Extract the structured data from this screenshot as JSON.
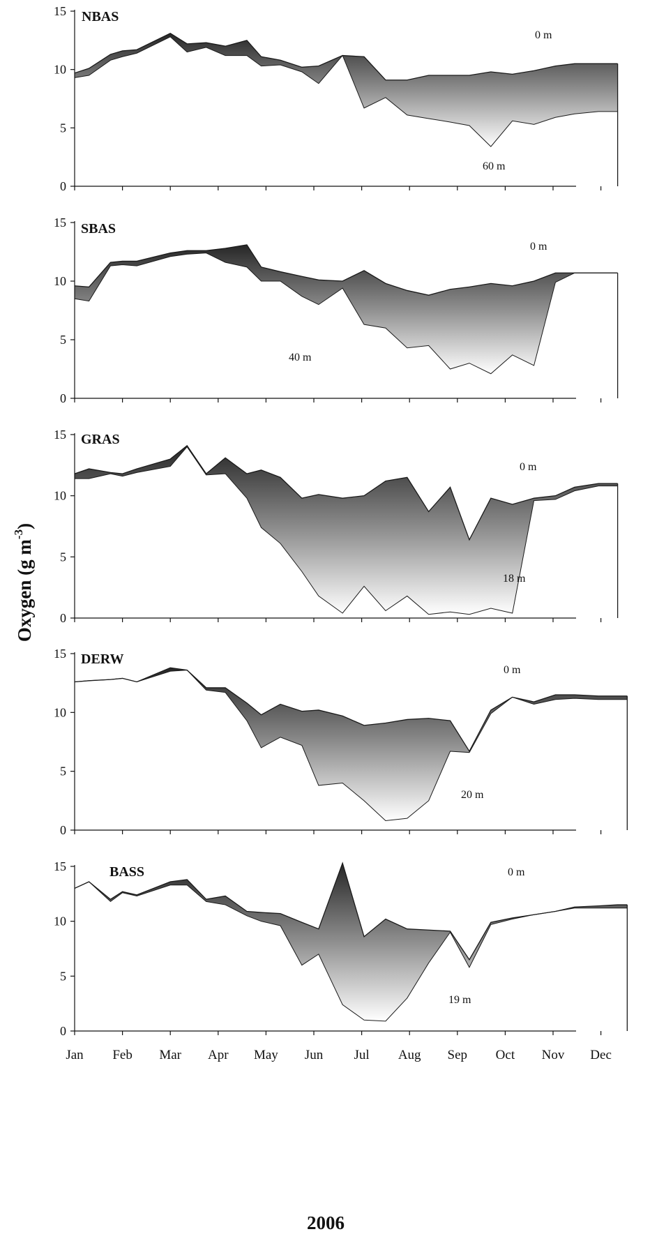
{
  "chart_data": [
    {
      "type": "area",
      "title": "NBAS",
      "surface_label": "0 m",
      "bottom_label": "60 m",
      "ylim": [
        0,
        15
      ],
      "yticks": [
        0,
        5,
        10,
        15
      ],
      "series": [
        {
          "name": "0 m",
          "x": [
            0.0,
            0.3,
            0.75,
            1.0,
            1.3,
            2.0,
            2.35,
            2.75,
            3.15,
            3.6,
            3.9,
            4.3,
            4.75,
            5.1,
            5.6,
            6.05,
            6.5,
            6.95,
            7.4,
            7.85,
            8.25,
            8.7,
            9.15,
            9.6,
            10.05,
            10.45,
            10.95,
            11.35
          ],
          "values": [
            9.7,
            10.1,
            11.3,
            11.6,
            11.7,
            13.1,
            12.2,
            12.3,
            12.0,
            12.5,
            11.1,
            10.8,
            10.2,
            10.3,
            11.2,
            11.1,
            9.1,
            9.1,
            9.5,
            9.5,
            9.5,
            9.8,
            9.6,
            9.9,
            10.3,
            10.5,
            10.5,
            10.5
          ]
        },
        {
          "name": "60 m",
          "x": [
            0.0,
            0.3,
            0.75,
            1.0,
            1.3,
            2.0,
            2.35,
            2.75,
            3.15,
            3.6,
            3.9,
            4.3,
            4.75,
            5.1,
            5.6,
            6.05,
            6.5,
            6.95,
            7.4,
            7.85,
            8.25,
            8.7,
            9.15,
            9.6,
            10.05,
            10.45,
            10.95,
            11.35
          ],
          "values": [
            9.3,
            9.5,
            10.8,
            11.1,
            11.4,
            12.8,
            11.5,
            11.9,
            11.2,
            11.2,
            10.3,
            10.4,
            9.8,
            8.8,
            11.2,
            6.7,
            7.6,
            6.1,
            5.8,
            5.5,
            5.2,
            3.4,
            5.6,
            5.3,
            5.9,
            6.2,
            6.4,
            6.4
          ]
        }
      ]
    },
    {
      "type": "area",
      "title": "SBAS",
      "surface_label": "0 m",
      "bottom_label": "40 m",
      "ylim": [
        0,
        15
      ],
      "yticks": [
        0,
        5,
        10,
        15
      ],
      "series": [
        {
          "name": "0 m",
          "x": [
            0.0,
            0.3,
            0.75,
            1.0,
            1.3,
            2.0,
            2.35,
            2.75,
            3.15,
            3.6,
            3.9,
            4.3,
            4.75,
            5.1,
            5.6,
            6.05,
            6.5,
            6.95,
            7.4,
            7.85,
            8.25,
            8.7,
            9.15,
            9.6,
            10.05,
            10.45,
            10.95,
            11.35
          ],
          "values": [
            9.6,
            9.5,
            11.6,
            11.7,
            11.7,
            12.4,
            12.6,
            12.6,
            12.8,
            13.1,
            11.2,
            10.8,
            10.4,
            10.1,
            10.0,
            10.9,
            9.8,
            9.2,
            8.8,
            9.3,
            9.5,
            9.8,
            9.6,
            10.0,
            10.7,
            10.7,
            10.7,
            10.7
          ]
        },
        {
          "name": "40 m",
          "x": [
            0.0,
            0.3,
            0.75,
            1.0,
            1.3,
            2.0,
            2.35,
            2.75,
            3.15,
            3.6,
            3.9,
            4.3,
            4.75,
            5.1,
            5.6,
            6.05,
            6.5,
            6.95,
            7.4,
            7.85,
            8.25,
            8.7,
            9.15,
            9.6,
            10.05,
            10.45,
            10.95,
            11.35
          ],
          "values": [
            8.5,
            8.3,
            11.3,
            11.4,
            11.3,
            12.1,
            12.3,
            12.4,
            11.6,
            11.2,
            10.0,
            10.0,
            8.7,
            8.0,
            9.4,
            6.3,
            6.0,
            4.3,
            4.5,
            2.5,
            3.0,
            2.1,
            3.7,
            2.8,
            9.9,
            10.7,
            10.7,
            10.7
          ]
        }
      ]
    },
    {
      "type": "area",
      "title": "GRAS",
      "surface_label": "0 m",
      "bottom_label": "18 m",
      "ylim": [
        0,
        15
      ],
      "yticks": [
        0,
        5,
        10,
        15
      ],
      "series": [
        {
          "name": "0 m",
          "x": [
            0.0,
            0.3,
            0.75,
            1.0,
            1.3,
            2.0,
            2.35,
            2.75,
            3.15,
            3.6,
            3.9,
            4.3,
            4.75,
            5.1,
            5.6,
            6.05,
            6.5,
            6.95,
            7.4,
            7.85,
            8.25,
            8.7,
            9.15,
            9.6,
            10.05,
            10.45,
            10.95,
            11.35
          ],
          "values": [
            11.8,
            12.2,
            11.9,
            11.8,
            12.2,
            13.0,
            14.1,
            11.8,
            13.1,
            11.8,
            12.1,
            11.5,
            9.8,
            10.1,
            9.8,
            10.0,
            11.2,
            11.5,
            8.7,
            10.7,
            6.4,
            9.8,
            9.3,
            9.8,
            10.0,
            10.7,
            11.0,
            11.0
          ]
        },
        {
          "name": "18 m",
          "x": [
            0.0,
            0.3,
            0.75,
            1.0,
            1.3,
            2.0,
            2.35,
            2.75,
            3.15,
            3.6,
            3.9,
            4.3,
            4.75,
            5.1,
            5.6,
            6.05,
            6.5,
            6.95,
            7.4,
            7.85,
            8.25,
            8.7,
            9.15,
            9.6,
            10.05,
            10.45,
            10.95,
            11.35
          ],
          "values": [
            11.4,
            11.4,
            11.8,
            11.6,
            11.9,
            12.4,
            14.0,
            11.7,
            11.8,
            9.8,
            7.4,
            6.1,
            3.8,
            1.8,
            0.4,
            2.6,
            0.6,
            1.8,
            0.3,
            0.5,
            0.3,
            0.8,
            0.4,
            9.6,
            9.7,
            10.4,
            10.8,
            10.8
          ]
        }
      ]
    },
    {
      "type": "area",
      "title": "DERW",
      "surface_label": "0 m",
      "bottom_label": "20 m",
      "ylim": [
        0,
        15
      ],
      "yticks": [
        0,
        5,
        10,
        15
      ],
      "series": [
        {
          "name": "0 m",
          "x": [
            0.0,
            0.3,
            0.75,
            1.0,
            1.3,
            2.0,
            2.35,
            2.75,
            3.15,
            3.6,
            3.9,
            4.3,
            4.75,
            5.1,
            5.6,
            6.05,
            6.5,
            6.95,
            7.4,
            7.85,
            8.25,
            8.7,
            9.15,
            9.6,
            10.05,
            10.45,
            10.95,
            11.35,
            11.55
          ],
          "values": [
            12.6,
            12.7,
            12.8,
            12.9,
            12.6,
            13.8,
            13.6,
            12.1,
            12.1,
            10.8,
            9.8,
            10.7,
            10.1,
            10.2,
            9.7,
            8.9,
            9.1,
            9.4,
            9.5,
            9.3,
            6.7,
            10.2,
            11.3,
            10.9,
            11.5,
            11.5,
            11.4,
            11.4,
            11.4
          ]
        },
        {
          "name": "20 m",
          "x": [
            0.0,
            0.3,
            0.75,
            1.0,
            1.3,
            2.0,
            2.35,
            2.75,
            3.15,
            3.6,
            3.9,
            4.3,
            4.75,
            5.1,
            5.6,
            6.05,
            6.5,
            6.95,
            7.4,
            7.85,
            8.25,
            8.7,
            9.15,
            9.6,
            10.05,
            10.45,
            10.95,
            11.35,
            11.55
          ],
          "values": [
            12.6,
            12.7,
            12.8,
            12.9,
            12.6,
            13.5,
            13.6,
            11.9,
            11.7,
            9.3,
            7.0,
            7.9,
            7.2,
            3.8,
            4.0,
            2.5,
            0.8,
            1.0,
            2.5,
            6.7,
            6.6,
            9.9,
            11.3,
            10.7,
            11.1,
            11.2,
            11.1,
            11.1,
            11.1
          ]
        }
      ]
    },
    {
      "type": "area",
      "title": "BASS",
      "surface_label": "0 m",
      "bottom_label": "19 m",
      "ylim": [
        0,
        15
      ],
      "yticks": [
        0,
        5,
        10,
        15
      ],
      "series": [
        {
          "name": "0 m",
          "x": [
            0.0,
            0.3,
            0.75,
            1.0,
            1.3,
            2.0,
            2.35,
            2.75,
            3.15,
            3.6,
            3.9,
            4.3,
            4.75,
            5.1,
            5.6,
            6.05,
            6.5,
            6.95,
            7.4,
            7.85,
            8.25,
            8.7,
            9.15,
            9.6,
            10.05,
            10.45,
            10.95,
            11.35,
            11.55
          ],
          "values": [
            13.0,
            13.6,
            12.0,
            12.7,
            12.4,
            13.6,
            13.8,
            12.0,
            12.3,
            10.9,
            10.8,
            10.7,
            9.9,
            9.3,
            15.3,
            8.6,
            10.2,
            9.3,
            9.2,
            9.1,
            6.5,
            9.9,
            10.3,
            10.6,
            10.9,
            11.3,
            11.4,
            11.5,
            11.5
          ]
        },
        {
          "name": "19 m",
          "x": [
            0.0,
            0.3,
            0.75,
            1.0,
            1.3,
            2.0,
            2.35,
            2.75,
            3.15,
            3.6,
            3.9,
            4.3,
            4.75,
            5.1,
            5.6,
            6.05,
            6.5,
            6.95,
            7.4,
            7.85,
            8.25,
            8.7,
            9.15,
            9.6,
            10.05,
            10.45,
            10.95,
            11.35,
            11.55
          ],
          "values": [
            13.0,
            13.6,
            11.8,
            12.6,
            12.3,
            13.3,
            13.3,
            11.8,
            11.5,
            10.5,
            10.0,
            9.6,
            6.0,
            7.0,
            2.4,
            1.0,
            0.9,
            3.0,
            6.2,
            9.0,
            5.8,
            9.7,
            10.2,
            10.6,
            10.9,
            11.2,
            11.2,
            11.2,
            11.2
          ]
        }
      ]
    }
  ],
  "x_tick_labels": [
    "Jan",
    "Feb",
    "Mar",
    "Apr",
    "May",
    "Jun",
    "Jul",
    "Aug",
    "Sep",
    "Oct",
    "Nov",
    "Dec"
  ],
  "x_title": "2006",
  "y_title_main": "Oxygen (g m",
  "y_title_sup": "-3",
  "y_title_end": ")",
  "colors": {
    "fill_dark": "#2a2a2a",
    "fill_light": "#ffffff",
    "line": "#1a1a1a",
    "axis": "#111111"
  }
}
